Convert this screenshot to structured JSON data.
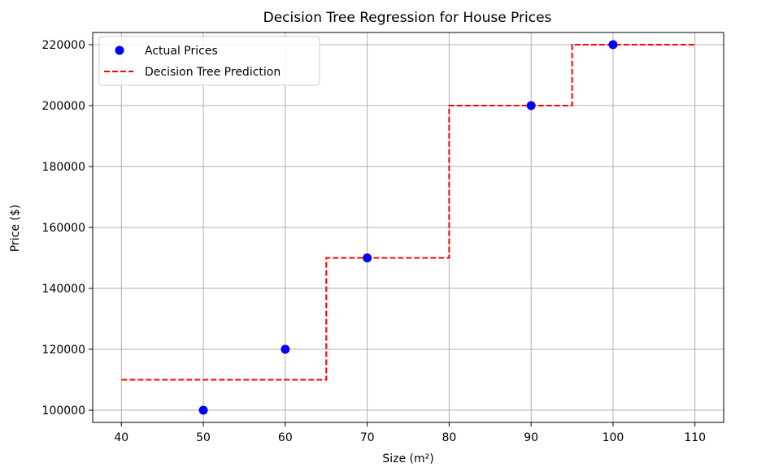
{
  "chart_data": {
    "type": "scatter",
    "title": "Decision Tree Regression for House Prices",
    "xlabel": "Size (m²)",
    "ylabel": "Price ($)",
    "xlim": [
      36.5,
      113.5
    ],
    "ylim": [
      96000,
      224000
    ],
    "xticks": [
      40,
      50,
      60,
      70,
      80,
      90,
      100,
      110
    ],
    "yticks": [
      100000,
      120000,
      140000,
      160000,
      180000,
      200000,
      220000
    ],
    "grid": true,
    "legend_position": "top-left",
    "series": [
      {
        "name": "Actual Prices",
        "kind": "scatter",
        "color": "#0000ff",
        "x": [
          50,
          60,
          70,
          90,
          100
        ],
        "y": [
          100000,
          120000,
          150000,
          200000,
          220000
        ]
      },
      {
        "name": "Decision Tree Prediction",
        "kind": "step-line",
        "style": "dashed",
        "color": "#ff0000",
        "x": [
          40,
          65,
          65,
          80,
          80,
          95,
          95,
          110
        ],
        "y": [
          110000,
          110000,
          150000,
          150000,
          200000,
          200000,
          220000,
          220000
        ]
      }
    ]
  }
}
